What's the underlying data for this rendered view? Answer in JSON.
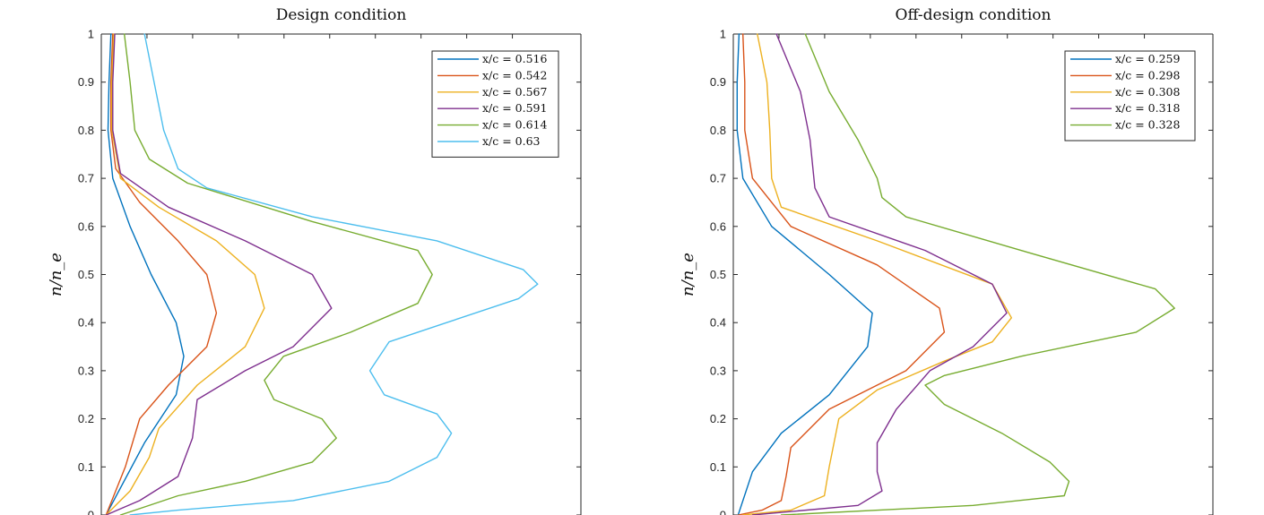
{
  "chart_data": [
    {
      "type": "line",
      "title": "Design condition",
      "ylabel": "n/n_e",
      "ylim": [
        0,
        1
      ],
      "yticks": [
        "1",
        "0.9",
        "0.8",
        "0.7",
        "0.6",
        "0.5",
        "0.4",
        "0.3",
        "0.2",
        "0.1",
        "0"
      ],
      "legend": "top-right",
      "series": [
        {
          "name": "x/c = 0.516",
          "color": "#0072BD",
          "points": [
            [
              0.1,
              1
            ],
            [
              0.08,
              0.9
            ],
            [
              0.07,
              0.8
            ],
            [
              0.12,
              0.7
            ],
            [
              0.3,
              0.6
            ],
            [
              0.52,
              0.5
            ],
            [
              0.78,
              0.4
            ],
            [
              0.86,
              0.33
            ],
            [
              0.78,
              0.25
            ],
            [
              0.45,
              0.15
            ],
            [
              0.05,
              0
            ]
          ]
        },
        {
          "name": "x/c = 0.542",
          "color": "#D95319",
          "points": [
            [
              0.12,
              1
            ],
            [
              0.1,
              0.9
            ],
            [
              0.1,
              0.8
            ],
            [
              0.15,
              0.72
            ],
            [
              0.4,
              0.65
            ],
            [
              0.8,
              0.57
            ],
            [
              1.1,
              0.5
            ],
            [
              1.2,
              0.42
            ],
            [
              1.1,
              0.35
            ],
            [
              0.7,
              0.27
            ],
            [
              0.4,
              0.2
            ],
            [
              0.25,
              0.1
            ],
            [
              0.05,
              0
            ]
          ]
        },
        {
          "name": "x/c = 0.567",
          "color": "#EDB120",
          "points": [
            [
              0.13,
              1
            ],
            [
              0.11,
              0.9
            ],
            [
              0.11,
              0.8
            ],
            [
              0.2,
              0.7
            ],
            [
              0.6,
              0.64
            ],
            [
              1.2,
              0.57
            ],
            [
              1.6,
              0.5
            ],
            [
              1.7,
              0.43
            ],
            [
              1.5,
              0.35
            ],
            [
              1.0,
              0.27
            ],
            [
              0.6,
              0.18
            ],
            [
              0.5,
              0.12
            ],
            [
              0.3,
              0.05
            ],
            [
              0.05,
              0
            ]
          ]
        },
        {
          "name": "x/c = 0.591",
          "color": "#7E2F8E",
          "points": [
            [
              0.14,
              1
            ],
            [
              0.12,
              0.9
            ],
            [
              0.12,
              0.8
            ],
            [
              0.2,
              0.71
            ],
            [
              0.7,
              0.64
            ],
            [
              1.5,
              0.57
            ],
            [
              2.2,
              0.5
            ],
            [
              2.4,
              0.43
            ],
            [
              2.0,
              0.35
            ],
            [
              1.5,
              0.3
            ],
            [
              1.0,
              0.24
            ],
            [
              0.95,
              0.16
            ],
            [
              0.8,
              0.08
            ],
            [
              0.4,
              0.03
            ],
            [
              0.05,
              0
            ]
          ]
        },
        {
          "name": "x/c = 0.614",
          "color": "#77AC30",
          "points": [
            [
              0.24,
              1
            ],
            [
              0.3,
              0.9
            ],
            [
              0.35,
              0.8
            ],
            [
              0.5,
              0.74
            ],
            [
              0.9,
              0.69
            ],
            [
              2.2,
              0.61
            ],
            [
              3.3,
              0.55
            ],
            [
              3.45,
              0.5
            ],
            [
              3.3,
              0.44
            ],
            [
              2.6,
              0.38
            ],
            [
              1.9,
              0.33
            ],
            [
              1.7,
              0.28
            ],
            [
              1.8,
              0.24
            ],
            [
              2.3,
              0.2
            ],
            [
              2.45,
              0.16
            ],
            [
              2.2,
              0.11
            ],
            [
              1.5,
              0.07
            ],
            [
              0.8,
              0.04
            ],
            [
              0.2,
              0
            ]
          ]
        },
        {
          "name": "x/c = 0.63",
          "color": "#4DBEEE",
          "points": [
            [
              0.45,
              1
            ],
            [
              0.55,
              0.9
            ],
            [
              0.65,
              0.8
            ],
            [
              0.8,
              0.72
            ],
            [
              1.1,
              0.68
            ],
            [
              2.2,
              0.62
            ],
            [
              3.5,
              0.57
            ],
            [
              4.4,
              0.51
            ],
            [
              4.55,
              0.48
            ],
            [
              4.35,
              0.45
            ],
            [
              3.6,
              0.4
            ],
            [
              3.0,
              0.36
            ],
            [
              2.8,
              0.3
            ],
            [
              2.95,
              0.25
            ],
            [
              3.5,
              0.21
            ],
            [
              3.65,
              0.17
            ],
            [
              3.5,
              0.12
            ],
            [
              3.0,
              0.07
            ],
            [
              2.0,
              0.03
            ],
            [
              0.8,
              0.01
            ],
            [
              0.3,
              0
            ]
          ]
        }
      ]
    },
    {
      "type": "line",
      "title": "Off-design condition",
      "ylabel": "n/n_e",
      "ylim": [
        0,
        1
      ],
      "yticks": [
        "1",
        "0.9",
        "0.8",
        "0.7",
        "0.6",
        "0.5",
        "0.4",
        "0.3",
        "0.2",
        "0.1",
        "0"
      ],
      "legend": "top-right",
      "series": [
        {
          "name": "x/c = 0.259",
          "color": "#0072BD",
          "points": [
            [
              0.06,
              1
            ],
            [
              0.04,
              0.9
            ],
            [
              0.04,
              0.8
            ],
            [
              0.1,
              0.7
            ],
            [
              0.4,
              0.6
            ],
            [
              1.0,
              0.5
            ],
            [
              1.45,
              0.42
            ],
            [
              1.4,
              0.35
            ],
            [
              1.0,
              0.25
            ],
            [
              0.5,
              0.17
            ],
            [
              0.2,
              0.09
            ],
            [
              0.05,
              0
            ]
          ]
        },
        {
          "name": "x/c = 0.298",
          "color": "#D95319",
          "points": [
            [
              0.1,
              1
            ],
            [
              0.12,
              0.9
            ],
            [
              0.12,
              0.8
            ],
            [
              0.2,
              0.7
            ],
            [
              0.6,
              0.6
            ],
            [
              1.5,
              0.52
            ],
            [
              2.15,
              0.43
            ],
            [
              2.2,
              0.38
            ],
            [
              1.8,
              0.3
            ],
            [
              1.0,
              0.22
            ],
            [
              0.6,
              0.14
            ],
            [
              0.55,
              0.08
            ],
            [
              0.5,
              0.03
            ],
            [
              0.3,
              0.01
            ],
            [
              0.05,
              0
            ]
          ]
        },
        {
          "name": "x/c = 0.308",
          "color": "#EDB120",
          "points": [
            [
              0.25,
              1
            ],
            [
              0.35,
              0.9
            ],
            [
              0.38,
              0.8
            ],
            [
              0.4,
              0.7
            ],
            [
              0.5,
              0.64
            ],
            [
              1.5,
              0.57
            ],
            [
              2.7,
              0.48
            ],
            [
              2.9,
              0.41
            ],
            [
              2.7,
              0.36
            ],
            [
              2.2,
              0.32
            ],
            [
              1.5,
              0.26
            ],
            [
              1.1,
              0.2
            ],
            [
              1.0,
              0.1
            ],
            [
              0.95,
              0.04
            ],
            [
              0.6,
              0.01
            ],
            [
              0.1,
              0
            ]
          ]
        },
        {
          "name": "x/c = 0.318",
          "color": "#7E2F8E",
          "points": [
            [
              0.45,
              1
            ],
            [
              0.7,
              0.88
            ],
            [
              0.8,
              0.78
            ],
            [
              0.85,
              0.68
            ],
            [
              1.0,
              0.62
            ],
            [
              2.0,
              0.55
            ],
            [
              2.7,
              0.48
            ],
            [
              2.85,
              0.42
            ],
            [
              2.5,
              0.35
            ],
            [
              2.05,
              0.3
            ],
            [
              1.7,
              0.22
            ],
            [
              1.5,
              0.15
            ],
            [
              1.5,
              0.09
            ],
            [
              1.55,
              0.05
            ],
            [
              1.3,
              0.02
            ],
            [
              0.2,
              0
            ]
          ]
        },
        {
          "name": "x/c = 0.328",
          "color": "#77AC30",
          "points": [
            [
              0.75,
              1
            ],
            [
              1.0,
              0.88
            ],
            [
              1.3,
              0.78
            ],
            [
              1.5,
              0.7
            ],
            [
              1.55,
              0.66
            ],
            [
              1.8,
              0.62
            ],
            [
              3.0,
              0.55
            ],
            [
              4.4,
              0.47
            ],
            [
              4.6,
              0.43
            ],
            [
              4.2,
              0.38
            ],
            [
              3.0,
              0.33
            ],
            [
              2.2,
              0.29
            ],
            [
              2.0,
              0.27
            ],
            [
              2.2,
              0.23
            ],
            [
              2.8,
              0.17
            ],
            [
              3.3,
              0.11
            ],
            [
              3.5,
              0.07
            ],
            [
              3.45,
              0.04
            ],
            [
              2.5,
              0.02
            ],
            [
              0.5,
              0
            ]
          ]
        }
      ]
    }
  ]
}
